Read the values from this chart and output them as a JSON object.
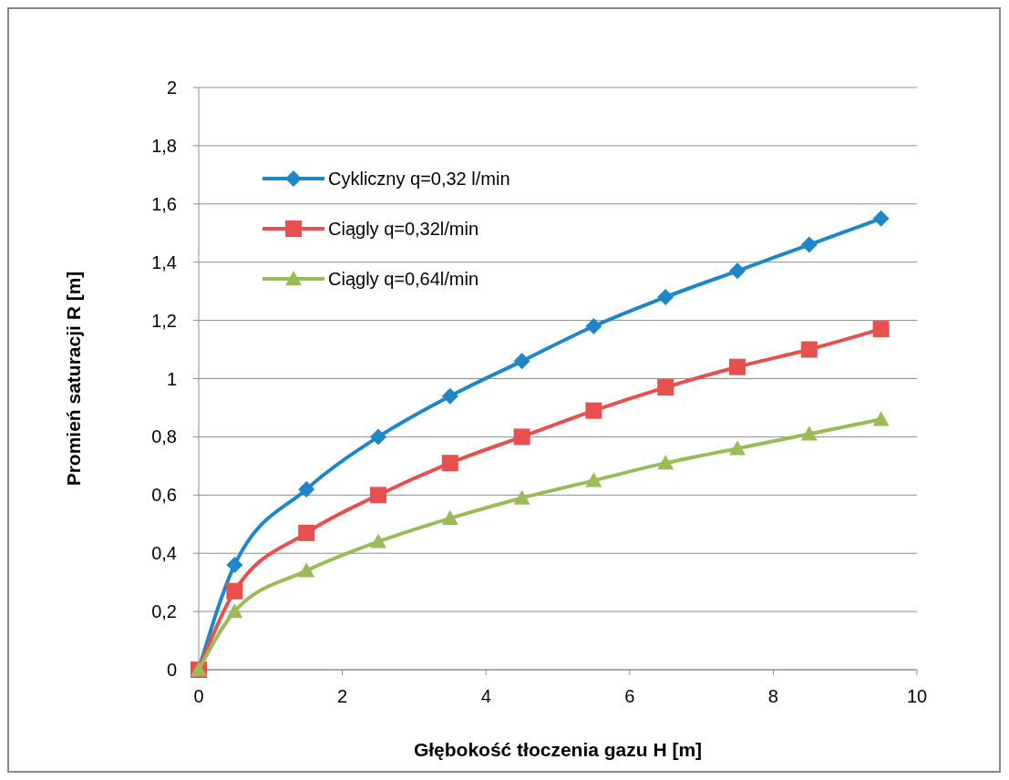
{
  "chart_data": {
    "type": "line",
    "xlabel": "Głębokość  tłoczenia gazu H [m]",
    "ylabel": "Promień saturacji R [m]",
    "xlim": [
      0,
      10
    ],
    "xticks": [
      0,
      2,
      4,
      6,
      8,
      10
    ],
    "ylim": [
      0,
      2
    ],
    "yticks": [
      0,
      {
        "value": 0.2,
        "label": "0,2"
      },
      {
        "value": 0.4,
        "label": "0,4"
      },
      {
        "value": 0.6,
        "label": "0,6"
      },
      {
        "value": 0.8,
        "label": "0,8"
      },
      1,
      {
        "value": 1.2,
        "label": "1,2"
      },
      {
        "value": 1.4,
        "label": "1,4"
      },
      {
        "value": 1.6,
        "label": "1,6"
      },
      {
        "value": 1.8,
        "label": "1,8"
      },
      2
    ],
    "x": [
      0,
      0.5,
      1.5,
      2.5,
      3.5,
      4.5,
      5.5,
      6.5,
      7.5,
      8.5,
      9.5
    ],
    "series": [
      {
        "name": "Cykliczny q=0,32 l/min",
        "color": "#1f86c8",
        "marker": "diamond",
        "values": [
          0,
          0.36,
          0.62,
          0.8,
          0.94,
          1.06,
          1.18,
          1.28,
          1.37,
          1.46,
          1.55
        ]
      },
      {
        "name": "Ciągly q=0,32l/min",
        "color": "#e8504f",
        "marker": "square",
        "values": [
          0,
          0.27,
          0.47,
          0.6,
          0.71,
          0.8,
          0.89,
          0.97,
          1.04,
          1.1,
          1.17
        ]
      },
      {
        "name": "Ciągly q=0,64l/min",
        "color": "#9bbb59",
        "marker": "triangle",
        "values": [
          0,
          0.2,
          0.34,
          0.44,
          0.52,
          0.59,
          0.65,
          0.71,
          0.76,
          0.81,
          0.86
        ]
      }
    ],
    "grid": "y",
    "legend": "top left"
  }
}
